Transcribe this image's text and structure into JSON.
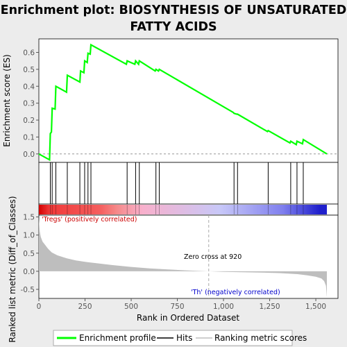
{
  "chart_data": {
    "type": "line",
    "title_line1": "Enrichment plot: BIOSYNTHESIS OF UNSATURATED",
    "title_line2": "FATTY ACIDS",
    "es_panel": {
      "ylabel": "Enrichment score (ES)",
      "ylim": [
        -0.05,
        0.68
      ],
      "yticks": [
        "0.0",
        "0.1",
        "0.2",
        "0.3",
        "0.4",
        "0.5",
        "0.6"
      ],
      "ytick_values": [
        0.0,
        0.1,
        0.2,
        0.3,
        0.4,
        0.5,
        0.6
      ],
      "series": [
        {
          "name": "Enrichment profile",
          "color": "#00ff00",
          "x": [
            0,
            58,
            62,
            68,
            72,
            88,
            92,
            150,
            154,
            222,
            226,
            244,
            248,
            262,
            266,
            278,
            282,
            474,
            478,
            520,
            524,
            540,
            544,
            630,
            634,
            648,
            652,
            1053,
            1057,
            1072,
            1076,
            1238,
            1242,
            1360,
            1364,
            1394,
            1398,
            1428,
            1432,
            1560
          ],
          "y": [
            0.0,
            -0.035,
            0.12,
            0.13,
            0.27,
            0.265,
            0.4,
            0.365,
            0.465,
            0.425,
            0.49,
            0.48,
            0.55,
            0.54,
            0.595,
            0.59,
            0.645,
            0.53,
            0.55,
            0.53,
            0.55,
            0.53,
            0.55,
            0.49,
            0.5,
            0.49,
            0.5,
            0.245,
            0.24,
            0.235,
            0.235,
            0.132,
            0.138,
            0.065,
            0.075,
            0.055,
            0.075,
            0.06,
            0.085,
            0.0
          ]
        }
      ]
    },
    "hits": {
      "name": "Hits",
      "x": [
        62,
        72,
        92,
        154,
        222,
        248,
        266,
        282,
        478,
        524,
        544,
        634,
        652,
        1057,
        1076,
        1242,
        1364,
        1398,
        1432
      ]
    },
    "metric_panel": {
      "ylabel": "Ranked list metric (Diff_of_Classes)",
      "xlabel": "Rank in Ordered Dataset",
      "ylim": [
        -0.75,
        1.55
      ],
      "yticks": [
        "-0.5",
        "0.0",
        "0.5",
        "1.0",
        "1.5"
      ],
      "ytick_values": [
        -0.5,
        0.0,
        0.5,
        1.0,
        1.5
      ],
      "xlim": [
        0,
        1620
      ],
      "xticks": [
        "0",
        "250",
        "500",
        "750",
        "1,000",
        "1,250",
        "1,500"
      ],
      "xtick_values": [
        0,
        250,
        500,
        750,
        1000,
        1250,
        1500
      ],
      "n_genes": 1560,
      "zero_cross": 920,
      "zero_cross_label": "Zero cross at 920",
      "positive_label": "'Tregs' (positively correlated)",
      "negative_label": "'Th' (negatively correlated)",
      "series": [
        {
          "name": "Ranking metric scores",
          "color": "#bebebe",
          "x": [
            0,
            5,
            10,
            20,
            35,
            50,
            70,
            100,
            150,
            200,
            250,
            300,
            400,
            500,
            600,
            700,
            800,
            920,
            1000,
            1100,
            1200,
            1300,
            1400,
            1450,
            1500,
            1530,
            1545,
            1555,
            1560
          ],
          "y": [
            1.45,
            1.1,
            0.95,
            0.82,
            0.72,
            0.62,
            0.52,
            0.44,
            0.36,
            0.3,
            0.26,
            0.23,
            0.17,
            0.12,
            0.08,
            0.05,
            0.025,
            0.0,
            -0.015,
            -0.025,
            -0.035,
            -0.05,
            -0.08,
            -0.11,
            -0.15,
            -0.2,
            -0.27,
            -0.4,
            -0.72
          ]
        }
      ]
    },
    "colorbar": {
      "stops": [
        {
          "x": 0,
          "color": "#d40000"
        },
        {
          "x": 60,
          "color": "#f03a3a"
        },
        {
          "x": 330,
          "color": "#f55e5e"
        },
        {
          "x": 420,
          "color": "#f58888"
        },
        {
          "x": 560,
          "color": "#f8b0cc"
        },
        {
          "x": 980,
          "color": "#c8c8f8"
        },
        {
          "x": 1320,
          "color": "#8080ee"
        },
        {
          "x": 1520,
          "color": "#2020cc"
        },
        {
          "x": 1560,
          "color": "#2020cc"
        }
      ]
    },
    "legend": {
      "items": [
        {
          "label": "Enrichment profile",
          "color": "#00ff00"
        },
        {
          "label": "Hits",
          "color": "#000000"
        },
        {
          "label": "Ranking metric scores",
          "color": "#bebebe"
        }
      ]
    },
    "colors": {
      "positive_label": "#cc0000",
      "negative_label": "#0000cc",
      "zero_line": "#aaaaaa"
    }
  }
}
